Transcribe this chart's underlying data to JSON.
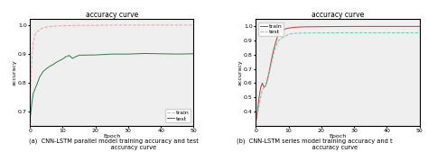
{
  "title": "accuracy curve",
  "xlabel": "Epoch",
  "ylabel": "accuracy",
  "xlim": [
    0,
    50
  ],
  "xticks": [
    0,
    10,
    20,
    30,
    40,
    50
  ],
  "left_caption": "(a)  CNN-LSTM parallel model training accuracy and test\n                     accuracy curve",
  "right_caption": "(b)  CNN-LSTM series model training accuracy and t\n                     accuracy curve",
  "plot1": {
    "train_color": "#f0a0a8",
    "test_color": "#2e7d4f",
    "train_style": "--",
    "test_style": "-",
    "ylim": [
      0.65,
      1.02
    ],
    "yticks": [
      0.7,
      0.8,
      0.9,
      1.0
    ],
    "train_x": [
      0,
      0.3,
      0.7,
      1,
      1.5,
      2,
      3,
      4,
      5,
      7,
      10,
      15,
      20,
      25,
      30,
      35,
      40,
      45,
      50
    ],
    "train_y": [
      0.72,
      0.82,
      0.9,
      0.94,
      0.965,
      0.975,
      0.984,
      0.99,
      0.993,
      0.996,
      0.998,
      0.999,
      0.999,
      1.0,
      1.0,
      1.0,
      1.0,
      1.0,
      1.0
    ],
    "test_x": [
      0,
      0.5,
      1,
      2,
      3,
      4,
      5,
      6,
      7,
      8,
      9,
      10,
      11,
      12,
      13,
      14,
      15,
      20,
      25,
      30,
      35,
      40,
      45,
      50
    ],
    "test_y": [
      0.67,
      0.72,
      0.762,
      0.79,
      0.82,
      0.838,
      0.848,
      0.856,
      0.862,
      0.87,
      0.876,
      0.882,
      0.89,
      0.894,
      0.884,
      0.89,
      0.895,
      0.896,
      0.899,
      0.899,
      0.901,
      0.9,
      0.899,
      0.9
    ]
  },
  "plot2": {
    "train_color": "#cc3333",
    "test_color": "#66ccaa",
    "train_style": "-",
    "test_style": "--",
    "ylim": [
      0.3,
      1.05
    ],
    "yticks": [
      0.4,
      0.5,
      0.6,
      0.7,
      0.8,
      0.9,
      1.0
    ],
    "train_x": [
      0,
      0.3,
      0.6,
      1,
      1.5,
      2,
      2.5,
      3,
      3.5,
      4,
      4.5,
      5,
      5.5,
      6,
      6.5,
      7,
      7.5,
      8,
      9,
      10,
      11,
      12,
      15,
      20,
      25,
      30,
      35,
      40,
      45,
      50
    ],
    "train_y": [
      0.33,
      0.36,
      0.42,
      0.5,
      0.57,
      0.6,
      0.57,
      0.58,
      0.62,
      0.67,
      0.73,
      0.79,
      0.84,
      0.88,
      0.92,
      0.95,
      0.97,
      0.975,
      0.982,
      0.988,
      0.991,
      0.994,
      0.997,
      0.998,
      0.999,
      1.0,
      1.0,
      1.0,
      1.0,
      1.0
    ],
    "test_x": [
      0,
      0.5,
      1,
      1.5,
      2,
      2.5,
      3,
      3.5,
      4,
      4.5,
      5,
      5.5,
      6,
      6.5,
      7,
      8,
      9,
      10,
      11,
      12,
      15,
      20,
      25,
      30,
      35,
      40,
      45,
      50
    ],
    "test_y": [
      0.33,
      0.38,
      0.44,
      0.5,
      0.55,
      0.57,
      0.58,
      0.62,
      0.66,
      0.71,
      0.76,
      0.81,
      0.85,
      0.88,
      0.9,
      0.92,
      0.93,
      0.945,
      0.949,
      0.951,
      0.953,
      0.954,
      0.955,
      0.955,
      0.955,
      0.955,
      0.955,
      0.955
    ]
  },
  "legend_fontsize": 4.5,
  "axis_fontsize": 4.5,
  "title_fontsize": 5.5,
  "caption_fontsize": 4.8,
  "bg_color": "#efefef"
}
